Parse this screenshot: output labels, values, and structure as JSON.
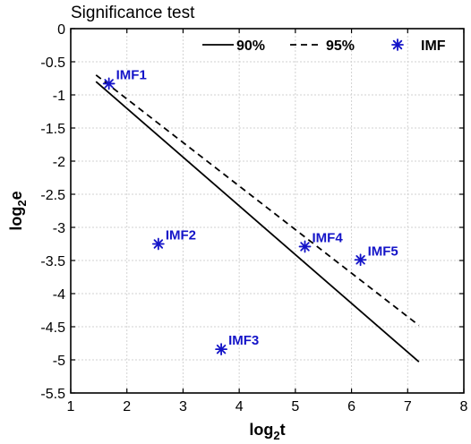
{
  "chart_data": {
    "type": "scatter",
    "title": "Significance test",
    "xlabel": {
      "base": "log",
      "sub": "2",
      "var": "t"
    },
    "ylabel": {
      "base": "log",
      "sub": "2",
      "var": "e"
    },
    "xlim": [
      1,
      8
    ],
    "ylim": [
      -5.5,
      0
    ],
    "xticks": [
      1,
      2,
      3,
      4,
      5,
      6,
      7,
      8
    ],
    "yticks": [
      0,
      -0.5,
      -1,
      -1.5,
      -2,
      -2.5,
      -3,
      -3.5,
      -4,
      -4.5,
      -5,
      -5.5
    ],
    "xtick_labels": [
      "1",
      "2",
      "3",
      "4",
      "5",
      "6",
      "7",
      "8"
    ],
    "ytick_labels": [
      "0",
      "-0.5",
      "-1",
      "-1.5",
      "-2",
      "-2.5",
      "-3",
      "-3.5",
      "-4",
      "-4.5",
      "-5",
      "-5.5"
    ],
    "grid": true,
    "legend_position": "top-right",
    "series": [
      {
        "name": "90%",
        "kind": "line",
        "style": "solid",
        "color": "#000000",
        "x": [
          1.45,
          7.2
        ],
        "y": [
          -0.8,
          -5.03
        ]
      },
      {
        "name": "95%",
        "kind": "line",
        "style": "dashed",
        "color": "#000000",
        "x": [
          1.45,
          7.2
        ],
        "y": [
          -0.7,
          -4.48
        ]
      },
      {
        "name": "IMF",
        "kind": "marker",
        "marker": "asterisk",
        "color": "#1414c8",
        "points": [
          {
            "label": "IMF1",
            "x": 1.68,
            "y": -0.83
          },
          {
            "label": "IMF2",
            "x": 2.56,
            "y": -3.25
          },
          {
            "label": "IMF3",
            "x": 3.68,
            "y": -4.84
          },
          {
            "label": "IMF4",
            "x": 5.17,
            "y": -3.29
          },
          {
            "label": "IMF5",
            "x": 6.16,
            "y": -3.49
          }
        ]
      }
    ]
  }
}
